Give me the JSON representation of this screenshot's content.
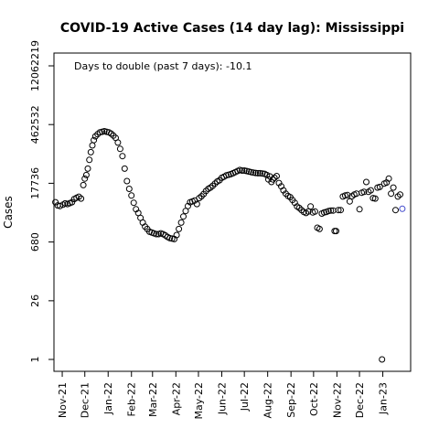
{
  "chart_data": {
    "type": "scatter",
    "title": "COVID-19 Active Cases (14 day lag): Mississippi",
    "xlabel": "",
    "ylabel": "Cases",
    "annotation": "Days to double (past 7 days): -10.1",
    "y_scale": "log",
    "yticks": [
      1,
      26,
      680,
      17736,
      462532,
      12062219
    ],
    "ytick_labels": [
      "1",
      "26",
      "680",
      "17736",
      "462532",
      "12062219"
    ],
    "ylim": [
      1,
      12062219
    ],
    "xlim": [
      "2021-10-21",
      "2023-02-07"
    ],
    "xticks": [
      "2021-11-01",
      "2021-12-01",
      "2022-01-01",
      "2022-02-01",
      "2022-03-01",
      "2022-04-01",
      "2022-05-01",
      "2022-06-01",
      "2022-07-01",
      "2022-08-01",
      "2022-09-01",
      "2022-10-01",
      "2022-11-01",
      "2022-12-01",
      "2023-01-01"
    ],
    "xtick_labels": [
      "Nov-21",
      "Dec-21",
      "Jan-22",
      "Feb-22",
      "Mar-22",
      "Apr-22",
      "May-22",
      "Jun-22",
      "Jul-22",
      "Aug-22",
      "Sep-22",
      "Oct-22",
      "Nov-22",
      "Dec-22",
      "Jan-23"
    ],
    "grid": false,
    "marker": "open-circle",
    "colors": {
      "points": "#000000",
      "last_point": "#3f48cc",
      "frame": "#000000"
    },
    "series": [
      {
        "points": [
          [
            "2021-10-23",
            6200
          ],
          [
            "2021-10-26",
            5200
          ],
          [
            "2021-10-29",
            5000
          ],
          [
            "2021-11-02",
            5400
          ],
          [
            "2021-11-05",
            5800
          ],
          [
            "2021-11-08",
            5600
          ],
          [
            "2021-11-11",
            5900
          ],
          [
            "2021-11-14",
            6200
          ],
          [
            "2021-11-17",
            7400
          ],
          [
            "2021-11-20",
            7900
          ],
          [
            "2021-11-23",
            8400
          ],
          [
            "2021-11-26",
            7600
          ],
          [
            "2021-11-29",
            16000
          ],
          [
            "2021-12-01",
            23000
          ],
          [
            "2021-12-03",
            28000
          ],
          [
            "2021-12-05",
            40000
          ],
          [
            "2021-12-07",
            65000
          ],
          [
            "2021-12-09",
            100000
          ],
          [
            "2021-12-11",
            145000
          ],
          [
            "2021-12-13",
            195000
          ],
          [
            "2021-12-15",
            240000
          ],
          [
            "2021-12-18",
            270000
          ],
          [
            "2021-12-21",
            300000
          ],
          [
            "2021-12-24",
            310000
          ],
          [
            "2021-12-27",
            320000
          ],
          [
            "2021-12-30",
            310000
          ],
          [
            "2022-01-02",
            300000
          ],
          [
            "2022-01-05",
            280000
          ],
          [
            "2022-01-08",
            250000
          ],
          [
            "2022-01-11",
            220000
          ],
          [
            "2022-01-14",
            170000
          ],
          [
            "2022-01-17",
            120000
          ],
          [
            "2022-01-20",
            80000
          ],
          [
            "2022-01-23",
            40000
          ],
          [
            "2022-01-26",
            20000
          ],
          [
            "2022-01-29",
            13000
          ],
          [
            "2022-02-01",
            9000
          ],
          [
            "2022-02-04",
            6000
          ],
          [
            "2022-02-07",
            4200
          ],
          [
            "2022-02-10",
            3400
          ],
          [
            "2022-02-13",
            2600
          ],
          [
            "2022-02-16",
            2000
          ],
          [
            "2022-02-19",
            1600
          ],
          [
            "2022-02-22",
            1400
          ],
          [
            "2022-02-25",
            1200
          ],
          [
            "2022-02-28",
            1150
          ],
          [
            "2022-03-03",
            1100
          ],
          [
            "2022-03-06",
            1050
          ],
          [
            "2022-03-09",
            1050
          ],
          [
            "2022-03-12",
            1100
          ],
          [
            "2022-03-15",
            1050
          ],
          [
            "2022-03-18",
            980
          ],
          [
            "2022-03-21",
            900
          ],
          [
            "2022-03-24",
            840
          ],
          [
            "2022-03-27",
            820
          ],
          [
            "2022-03-30",
            800
          ],
          [
            "2022-04-02",
            1000
          ],
          [
            "2022-04-05",
            1400
          ],
          [
            "2022-04-08",
            2000
          ],
          [
            "2022-04-11",
            2800
          ],
          [
            "2022-04-14",
            3800
          ],
          [
            "2022-04-17",
            5000
          ],
          [
            "2022-04-20",
            6200
          ],
          [
            "2022-04-23",
            6500
          ],
          [
            "2022-04-26",
            6800
          ],
          [
            "2022-04-29",
            5600
          ],
          [
            "2022-05-02",
            7800
          ],
          [
            "2022-05-05",
            8600
          ],
          [
            "2022-05-08",
            9800
          ],
          [
            "2022-05-11",
            11500
          ],
          [
            "2022-05-14",
            13000
          ],
          [
            "2022-05-17",
            14000
          ],
          [
            "2022-05-20",
            15500
          ],
          [
            "2022-05-23",
            17500
          ],
          [
            "2022-05-26",
            19500
          ],
          [
            "2022-05-29",
            21000
          ],
          [
            "2022-06-01",
            24000
          ],
          [
            "2022-06-04",
            25500
          ],
          [
            "2022-06-07",
            27500
          ],
          [
            "2022-06-10",
            28500
          ],
          [
            "2022-06-13",
            29500
          ],
          [
            "2022-06-16",
            31000
          ],
          [
            "2022-06-19",
            33000
          ],
          [
            "2022-06-22",
            35000
          ],
          [
            "2022-06-25",
            37000
          ],
          [
            "2022-06-28",
            36000
          ],
          [
            "2022-07-01",
            36000
          ],
          [
            "2022-07-04",
            35000
          ],
          [
            "2022-07-07",
            34000
          ],
          [
            "2022-07-10",
            33000
          ],
          [
            "2022-07-13",
            32000
          ],
          [
            "2022-07-16",
            31500
          ],
          [
            "2022-07-19",
            31000
          ],
          [
            "2022-07-22",
            31000
          ],
          [
            "2022-07-25",
            30500
          ],
          [
            "2022-07-28",
            30000
          ],
          [
            "2022-07-31",
            28000
          ],
          [
            "2022-08-02",
            22000
          ],
          [
            "2022-08-04",
            26000
          ],
          [
            "2022-08-06",
            19000
          ],
          [
            "2022-08-08",
            22000
          ],
          [
            "2022-08-10",
            24000
          ],
          [
            "2022-08-13",
            26500
          ],
          [
            "2022-08-16",
            18000
          ],
          [
            "2022-08-19",
            15000
          ],
          [
            "2022-08-22",
            12000
          ],
          [
            "2022-08-25",
            10000
          ],
          [
            "2022-08-28",
            8800
          ],
          [
            "2022-08-31",
            8200
          ],
          [
            "2022-09-03",
            7000
          ],
          [
            "2022-09-06",
            6000
          ],
          [
            "2022-09-09",
            4900
          ],
          [
            "2022-09-12",
            4500
          ],
          [
            "2022-09-15",
            4000
          ],
          [
            "2022-09-18",
            3600
          ],
          [
            "2022-09-21",
            3400
          ],
          [
            "2022-09-24",
            3700
          ],
          [
            "2022-09-27",
            4900
          ],
          [
            "2022-09-30",
            3500
          ],
          [
            "2022-10-03",
            3700
          ],
          [
            "2022-10-06",
            1500
          ],
          [
            "2022-10-09",
            1400
          ],
          [
            "2022-10-12",
            3300
          ],
          [
            "2022-10-15",
            3500
          ],
          [
            "2022-10-18",
            3600
          ],
          [
            "2022-10-21",
            3800
          ],
          [
            "2022-10-24",
            3900
          ],
          [
            "2022-10-27",
            3900
          ],
          [
            "2022-10-29",
            1250
          ],
          [
            "2022-10-31",
            1250
          ],
          [
            "2022-11-03",
            4000
          ],
          [
            "2022-11-06",
            4000
          ],
          [
            "2022-11-09",
            8500
          ],
          [
            "2022-11-12",
            9000
          ],
          [
            "2022-11-15",
            9200
          ],
          [
            "2022-11-18",
            6500
          ],
          [
            "2022-11-21",
            8600
          ],
          [
            "2022-11-24",
            9500
          ],
          [
            "2022-11-27",
            10000
          ],
          [
            "2022-12-01",
            4200
          ],
          [
            "2022-12-04",
            10500
          ],
          [
            "2022-12-07",
            11000
          ],
          [
            "2022-12-10",
            19000
          ],
          [
            "2022-12-13",
            11000
          ],
          [
            "2022-12-16",
            12000
          ],
          [
            "2022-12-19",
            7800
          ],
          [
            "2022-12-22",
            7600
          ],
          [
            "2022-12-25",
            14000
          ],
          [
            "2022-12-28",
            14500
          ],
          [
            "2022-12-31",
            1
          ],
          [
            "2023-01-03",
            17500
          ],
          [
            "2023-01-06",
            18500
          ],
          [
            "2023-01-09",
            23000
          ],
          [
            "2023-01-12",
            10000
          ],
          [
            "2023-01-15",
            14000
          ],
          [
            "2023-01-18",
            4000
          ],
          [
            "2023-01-21",
            8500
          ],
          [
            "2023-01-24",
            9500
          ],
          [
            "2023-01-27",
            4300
          ]
        ]
      }
    ]
  }
}
